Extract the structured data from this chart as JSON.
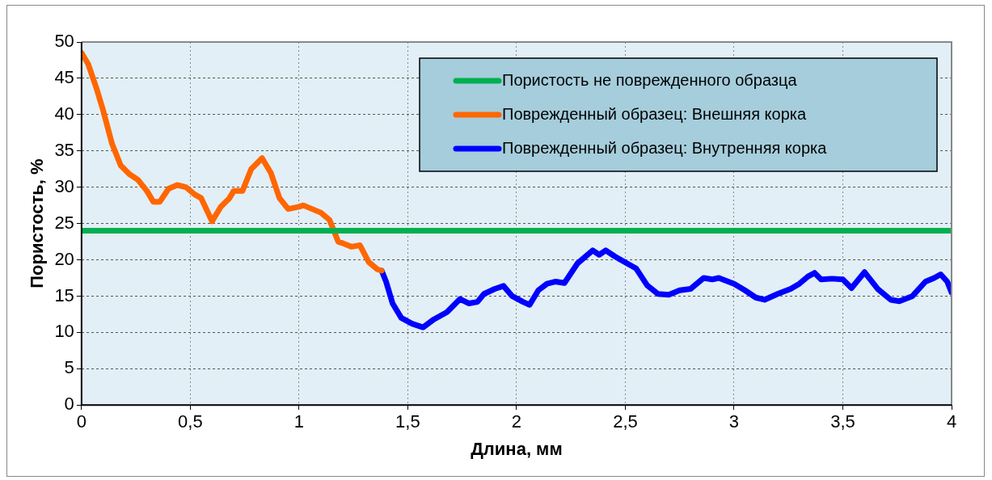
{
  "chart_data": {
    "type": "line",
    "xlabel": "Длина, мм",
    "ylabel": "Пористость, %",
    "xlim": [
      0,
      4
    ],
    "xticks": [
      0,
      {
        "value": 0.5,
        "label": "0,5"
      },
      1,
      {
        "value": 1.5,
        "label": "1,5"
      },
      2,
      {
        "value": 2.5,
        "label": "2,5"
      },
      3,
      {
        "value": 3.5,
        "label": "3,5"
      },
      4
    ],
    "ylim": [
      0,
      50
    ],
    "yticks": [
      0,
      5,
      10,
      15,
      20,
      25,
      30,
      35,
      40,
      45,
      50
    ],
    "grid": true,
    "legend": "top right",
    "marker": "none",
    "line_style": "solid",
    "series": [
      {
        "name": "Пористость не поврежденного образца",
        "color": "#00b050",
        "x": [
          0,
          4
        ],
        "values": [
          24,
          24
        ]
      },
      {
        "name": "Поврежденный образец: Внешняя корка",
        "color": "#ff6600",
        "x": [
          0,
          0.03,
          0.07,
          0.1,
          0.14,
          0.18,
          0.22,
          0.26,
          0.3,
          0.33,
          0.36,
          0.4,
          0.44,
          0.48,
          0.52,
          0.55,
          0.6,
          0.64,
          0.68,
          0.7,
          0.74,
          0.78,
          0.83,
          0.87,
          0.91,
          0.95,
          1.0,
          1.02,
          1.06,
          1.1,
          1.14,
          1.18,
          1.2,
          1.24,
          1.28,
          1.32,
          1.36,
          1.38
        ],
        "values": [
          48.5,
          47,
          43.5,
          40.5,
          36,
          33,
          31.8,
          31,
          29.5,
          28,
          28,
          29.8,
          30.3,
          30,
          29,
          28.5,
          25.3,
          27.3,
          28.5,
          29.5,
          29.5,
          32.5,
          34,
          32,
          28.5,
          27,
          27.3,
          27.5,
          27,
          26.5,
          25.5,
          22.5,
          22.3,
          21.8,
          22,
          19.7,
          18.7,
          18.5
        ]
      },
      {
        "name": "Поврежденный образец: Внутренняя корка",
        "color": "#0000ff",
        "x": [
          1.38,
          1.4,
          1.43,
          1.47,
          1.52,
          1.57,
          1.62,
          1.68,
          1.74,
          1.78,
          1.82,
          1.85,
          1.9,
          1.94,
          1.98,
          2.03,
          2.06,
          2.1,
          2.14,
          2.18,
          2.22,
          2.28,
          2.35,
          2.38,
          2.41,
          2.45,
          2.52,
          2.55,
          2.6,
          2.65,
          2.7,
          2.75,
          2.8,
          2.86,
          2.9,
          2.93,
          3.0,
          3.05,
          3.1,
          3.14,
          3.2,
          3.26,
          3.3,
          3.34,
          3.37,
          3.4,
          3.45,
          3.5,
          3.54,
          3.6,
          3.66,
          3.72,
          3.76,
          3.82,
          3.88,
          3.92,
          3.95,
          3.98,
          4.0
        ],
        "values": [
          18.5,
          17,
          14,
          12,
          11.2,
          10.7,
          11.8,
          12.8,
          14.6,
          14,
          14.2,
          15.3,
          16,
          16.4,
          15,
          14.2,
          13.8,
          15.8,
          16.7,
          17,
          16.8,
          19.5,
          21.3,
          20.7,
          21.3,
          20.5,
          19.3,
          18.8,
          16.5,
          15.3,
          15.2,
          15.8,
          16,
          17.5,
          17.3,
          17.5,
          16.7,
          15.8,
          14.8,
          14.5,
          15.3,
          16,
          16.7,
          17.7,
          18.2,
          17.3,
          17.4,
          17.3,
          16.1,
          18.3,
          16,
          14.5,
          14.3,
          15,
          17,
          17.5,
          18,
          17,
          15.5
        ]
      }
    ]
  }
}
